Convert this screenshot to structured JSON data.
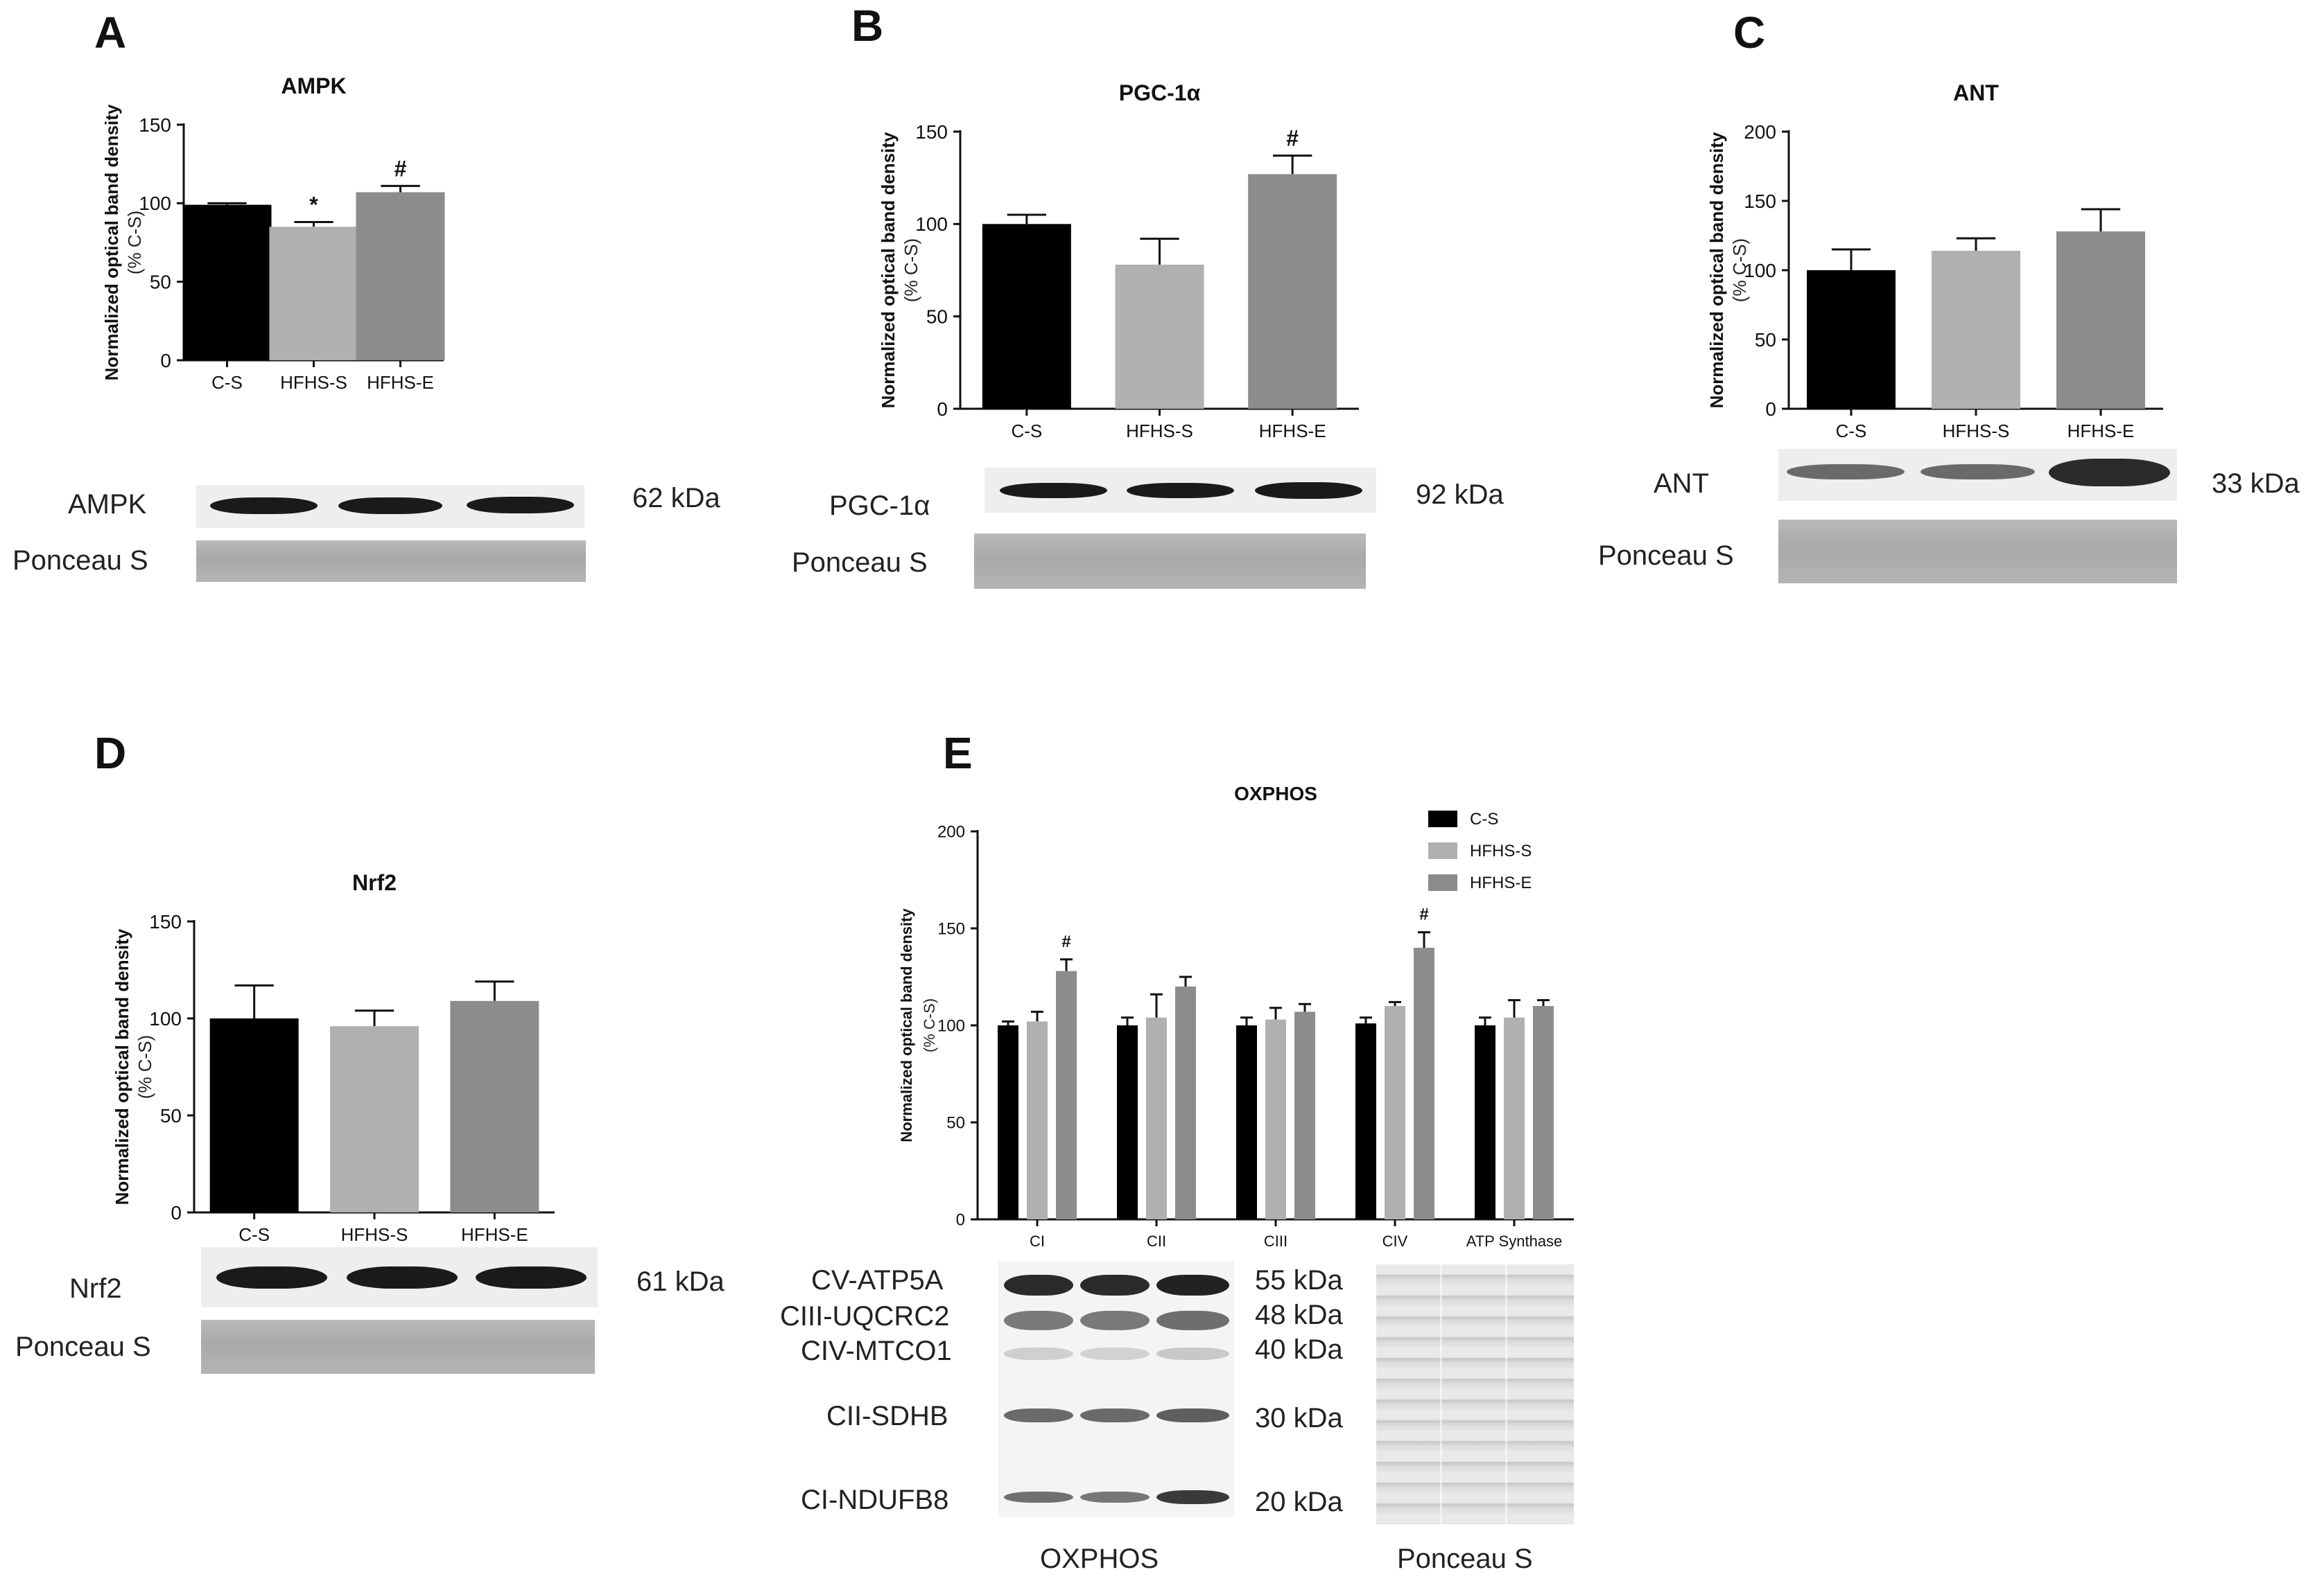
{
  "panels": {
    "A": {
      "letter": "A",
      "blot_label": "AMPK",
      "kda": "62 kDa",
      "ponceau": "Ponceau S"
    },
    "B": {
      "letter": "B",
      "blot_label": "PGC-1α",
      "kda": "92 kDa",
      "ponceau": "Ponceau S"
    },
    "C": {
      "letter": "C",
      "blot_label": "ANT",
      "kda": "33 kDa",
      "ponceau": "Ponceau S"
    },
    "D": {
      "letter": "D",
      "blot_label": "Nrf2",
      "kda": "61 kDa",
      "ponceau": "Ponceau S"
    },
    "E": {
      "letter": "E",
      "proteins": [
        {
          "name": "CV-ATP5A",
          "kda": "55 kDa"
        },
        {
          "name": "CIII-UQCRC2",
          "kda": "48 kDa"
        },
        {
          "name": "CIV-MTCO1",
          "kda": "40 kDa"
        },
        {
          "name": "CII-SDHB",
          "kda": "30 kDa"
        },
        {
          "name": "CI-NDUFB8",
          "kda": "20 kDa"
        }
      ],
      "bottom_left": "OXPHOS",
      "bottom_right": "Ponceau S"
    }
  },
  "colors": {
    "C-S": "#000000",
    "HFHS-S": "#b0b0b0",
    "HFHS-E": "#8c8c8c"
  },
  "chart_data": [
    {
      "id": "A",
      "type": "bar",
      "title": "AMPK",
      "ylabel": "Normalized optical band density",
      "ylabel2": "(% C-S)",
      "categories": [
        "C-S",
        "HFHS-S",
        "HFHS-E"
      ],
      "values": [
        99,
        85,
        107
      ],
      "errors": [
        1,
        3,
        4
      ],
      "annotations": [
        "",
        "*",
        "#"
      ],
      "ylim": [
        0,
        150
      ],
      "yticks": [
        "0",
        "50",
        "100",
        "150"
      ]
    },
    {
      "id": "B",
      "type": "bar",
      "title": "PGC-1α",
      "ylabel": "Normalized optical band density",
      "ylabel2": "(% C-S)",
      "categories": [
        "C-S",
        "HFHS-S",
        "HFHS-E"
      ],
      "values": [
        100,
        78,
        127
      ],
      "errors": [
        5,
        14,
        10
      ],
      "annotations": [
        "",
        "",
        "#"
      ],
      "ylim": [
        0,
        150
      ],
      "yticks": [
        "0",
        "50",
        "100",
        "150"
      ]
    },
    {
      "id": "C",
      "type": "bar",
      "title": "ANT",
      "ylabel": "Normalized optical band density",
      "ylabel2": "(% C-S)",
      "categories": [
        "C-S",
        "HFHS-S",
        "HFHS-E"
      ],
      "values": [
        100,
        114,
        128
      ],
      "errors": [
        15,
        9,
        16
      ],
      "annotations": [
        "",
        "",
        ""
      ],
      "ylim": [
        0,
        200
      ],
      "yticks": [
        "0",
        "50",
        "100",
        "150",
        "200"
      ]
    },
    {
      "id": "D",
      "type": "bar",
      "title": "Nrf2",
      "ylabel": "Normalized optical band density",
      "ylabel2": "(% C-S)",
      "categories": [
        "C-S",
        "HFHS-S",
        "HFHS-E"
      ],
      "values": [
        100,
        96,
        109
      ],
      "errors": [
        17,
        8,
        10
      ],
      "annotations": [
        "",
        "",
        ""
      ],
      "ylim": [
        0,
        150
      ],
      "yticks": [
        "0",
        "50",
        "100",
        "150"
      ]
    },
    {
      "id": "E",
      "type": "bar",
      "title": "OXPHOS",
      "ylabel": "Normalized optical band density",
      "ylabel2": "(% C-S)",
      "categories": [
        "CI",
        "CII",
        "CIII",
        "CIV",
        "ATP Synthase"
      ],
      "series": [
        {
          "name": "C-S",
          "values": [
            100,
            100,
            100,
            101,
            100
          ],
          "errors": [
            2,
            4,
            4,
            3,
            4
          ]
        },
        {
          "name": "HFHS-S",
          "values": [
            102,
            104,
            103,
            110,
            104
          ],
          "errors": [
            5,
            12,
            6,
            2,
            9
          ]
        },
        {
          "name": "HFHS-E",
          "values": [
            128,
            120,
            107,
            140,
            110
          ],
          "errors": [
            6,
            5,
            4,
            8,
            3
          ]
        }
      ],
      "annotations": [
        {
          "category": "CI",
          "series": "HFHS-E",
          "text": "#"
        },
        {
          "category": "CIV",
          "series": "HFHS-E",
          "text": "#"
        }
      ],
      "legend_position": "top-right",
      "ylim": [
        0,
        200
      ],
      "yticks": [
        "0",
        "50",
        "100",
        "150",
        "200"
      ]
    }
  ]
}
